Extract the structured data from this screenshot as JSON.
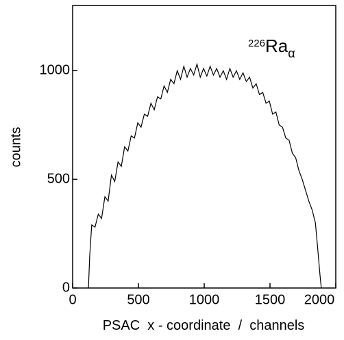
{
  "chart_data": {
    "type": "line",
    "x_label": "PSAC  x - coordinate  /  channels",
    "y_label": "counts",
    "annotation": {
      "mass": "226",
      "element": "Ra",
      "subscript": "α"
    },
    "xlim": [
      0,
      2000
    ],
    "xticks": [
      0,
      500,
      1000,
      1500,
      2000
    ],
    "ylim": [
      0,
      1300
    ],
    "yticks": [
      0,
      500,
      1000
    ],
    "grid": false,
    "series": [
      {
        "color": "#000000",
        "x": [
          120,
          130,
          145,
          170,
          195,
          220,
          245,
          270,
          295,
          320,
          345,
          370,
          395,
          420,
          445,
          470,
          495,
          520,
          545,
          570,
          595,
          620,
          645,
          670,
          695,
          720,
          745,
          770,
          795,
          820,
          845,
          870,
          895,
          920,
          945,
          970,
          995,
          1020,
          1045,
          1070,
          1095,
          1120,
          1145,
          1170,
          1195,
          1220,
          1245,
          1270,
          1295,
          1320,
          1345,
          1370,
          1395,
          1420,
          1445,
          1470,
          1495,
          1520,
          1545,
          1570,
          1595,
          1620,
          1645,
          1670,
          1695,
          1720,
          1745,
          1770,
          1795,
          1820,
          1845,
          1860,
          1880,
          1890
        ],
        "values": [
          0,
          150,
          290,
          280,
          340,
          320,
          420,
          400,
          520,
          490,
          580,
          560,
          650,
          630,
          700,
          690,
          760,
          740,
          800,
          790,
          850,
          820,
          880,
          870,
          930,
          900,
          960,
          940,
          1000,
          960,
          1020,
          970,
          1010,
          980,
          1030,
          970,
          1010,
          975,
          1020,
          980,
          1010,
          970,
          1000,
          960,
          1010,
          970,
          1000,
          960,
          990,
          950,
          970,
          920,
          940,
          890,
          900,
          850,
          860,
          800,
          810,
          750,
          740,
          690,
          680,
          620,
          600,
          540,
          500,
          450,
          400,
          360,
          300,
          200,
          60,
          0
        ]
      }
    ]
  }
}
